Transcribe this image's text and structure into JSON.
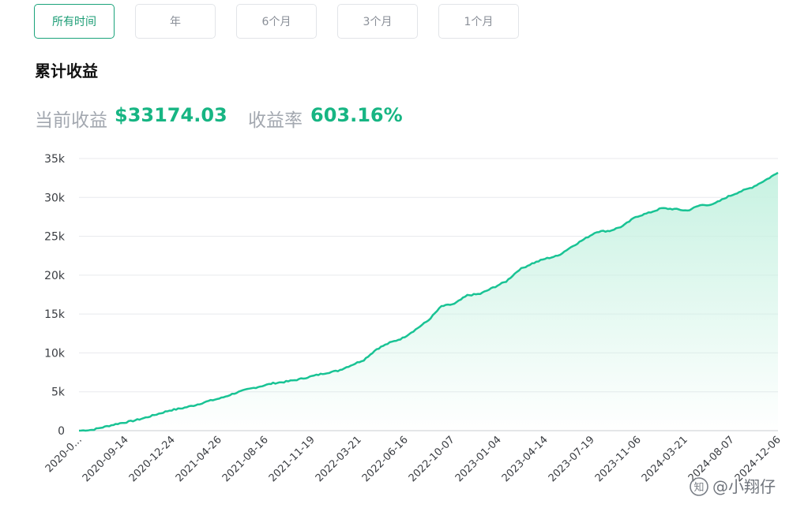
{
  "tabs": [
    {
      "label": "所有时间",
      "active": true
    },
    {
      "label": "年",
      "active": false
    },
    {
      "label": "6个月",
      "active": false
    },
    {
      "label": "3个月",
      "active": false
    },
    {
      "label": "1个月",
      "active": false
    }
  ],
  "section_title": "累计收益",
  "stats": {
    "current_label": "当前收益",
    "current_value": "$33174.03",
    "rate_label": "收益率",
    "rate_value": "603.16%"
  },
  "colors": {
    "accent": "#17b583",
    "line": "#19c394",
    "area_top": "#c8f2e2",
    "grid": "#e8eaed"
  },
  "watermark": {
    "text": "@小翔仔",
    "icon": "zhihu-logo-icon"
  },
  "chart_data": {
    "type": "area",
    "ylim": [
      0,
      35000
    ],
    "y_ticks": [
      0,
      5000,
      10000,
      15000,
      20000,
      25000,
      30000,
      35000
    ],
    "y_tick_labels": [
      "0",
      "5k",
      "10k",
      "15k",
      "20k",
      "25k",
      "30k",
      "35k"
    ],
    "x_tick_labels": [
      "2020-0...",
      "2020-09-14",
      "2020-12-24",
      "2021-04-26",
      "2021-08-16",
      "2021-11-19",
      "2022-03-21",
      "2022-06-16",
      "2022-10-07",
      "2023-01-04",
      "2023-04-14",
      "2023-07-19",
      "2023-11-06",
      "2024-03-21",
      "2024-08-07",
      "2024-12-06"
    ],
    "x_range": [
      "2020-06",
      "2024-12-06"
    ],
    "grid": true,
    "series": [
      {
        "x": [
          "2020-06",
          "2020-07",
          "2020-08",
          "2020-09",
          "2020-10",
          "2020-11",
          "2020-12",
          "2021-01",
          "2021-02",
          "2021-03",
          "2021-04",
          "2021-05",
          "2021-06",
          "2021-07",
          "2021-08",
          "2021-09",
          "2021-10",
          "2021-11",
          "2021-12",
          "2022-01",
          "2022-02",
          "2022-03",
          "2022-04",
          "2022-05",
          "2022-06",
          "2022-07",
          "2022-08",
          "2022-09",
          "2022-10",
          "2022-11",
          "2022-12",
          "2023-01",
          "2023-02",
          "2023-03",
          "2023-04",
          "2023-05",
          "2023-06",
          "2023-07",
          "2023-08",
          "2023-09",
          "2023-10",
          "2023-11",
          "2023-12",
          "2024-01",
          "2024-02",
          "2024-03",
          "2024-04",
          "2024-05",
          "2024-06",
          "2024-07",
          "2024-08",
          "2024-09",
          "2024-10",
          "2024-11",
          "2024-12"
        ],
        "values": [
          0,
          100,
          500,
          900,
          1200,
          1600,
          2100,
          2600,
          2900,
          3300,
          3800,
          4200,
          4800,
          5300,
          5700,
          6100,
          6300,
          6600,
          7000,
          7400,
          7700,
          8400,
          9100,
          10500,
          11300,
          11900,
          13000,
          14200,
          16000,
          16300,
          17400,
          17600,
          18400,
          19200,
          20700,
          21500,
          22100,
          22500,
          23600,
          24600,
          25600,
          25700,
          26300,
          27500,
          28000,
          28600,
          28500,
          28300,
          29000,
          29100,
          30000,
          30700,
          31300,
          32200,
          33174
        ]
      }
    ]
  }
}
